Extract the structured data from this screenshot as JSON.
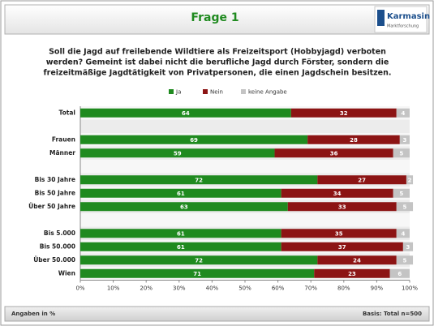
{
  "header": {
    "title": "Frage 1",
    "logo": "Karmasin",
    "logo_sub": "Marktforschung"
  },
  "chart_data": {
    "type": "stacked-bar-horizontal",
    "title_lines": [
      "Soll die Jagd auf freilebende Wildtiere als Freizeitsport (Hobbyjagd) verboten",
      "werden? Gemeint ist dabei nicht die berufliche Jagd durch Förster, sondern die",
      "freizeitmäßige Jagdtätigkeit von Privatpersonen, die einen Jagdschein besitzen."
    ],
    "categories": [
      "Total",
      null,
      "Frauen",
      "Männer",
      null,
      "Bis 30 Jahre",
      "Bis 50 Jahre",
      "Über 50 Jahre",
      null,
      "Bis 5.000",
      "Bis 50.000",
      "Über 50.000",
      "Wien"
    ],
    "series": [
      {
        "name": "Ja",
        "color": "#1f8a1f",
        "values": [
          64,
          null,
          69,
          59,
          null,
          72,
          61,
          63,
          null,
          61,
          61,
          72,
          71
        ]
      },
      {
        "name": "Nein",
        "color": "#8c1414",
        "values": [
          32,
          null,
          28,
          36,
          null,
          27,
          34,
          33,
          null,
          35,
          37,
          24,
          23
        ]
      },
      {
        "name": "keine Angabe",
        "color": "#c4c4c4",
        "values": [
          4,
          null,
          3,
          5,
          null,
          2,
          5,
          5,
          null,
          4,
          3,
          5,
          6
        ]
      }
    ],
    "xlim": [
      0,
      100
    ],
    "xticks": [
      {
        "value": 0,
        "label": "0%"
      },
      {
        "value": 10,
        "label": "10%"
      },
      {
        "value": 20,
        "label": "20%"
      },
      {
        "value": 30,
        "label": "30%"
      },
      {
        "value": 40,
        "label": "40%"
      },
      {
        "value": 50,
        "label": "50%"
      },
      {
        "value": 60,
        "label": "60%"
      },
      {
        "value": 70,
        "label": "70%"
      },
      {
        "value": 80,
        "label": "80%"
      },
      {
        "value": 90,
        "label": "90%"
      },
      {
        "value": 100,
        "label": "100%"
      }
    ]
  },
  "footer": {
    "left": "Angaben in %",
    "right": "Basis: Total n=500"
  }
}
